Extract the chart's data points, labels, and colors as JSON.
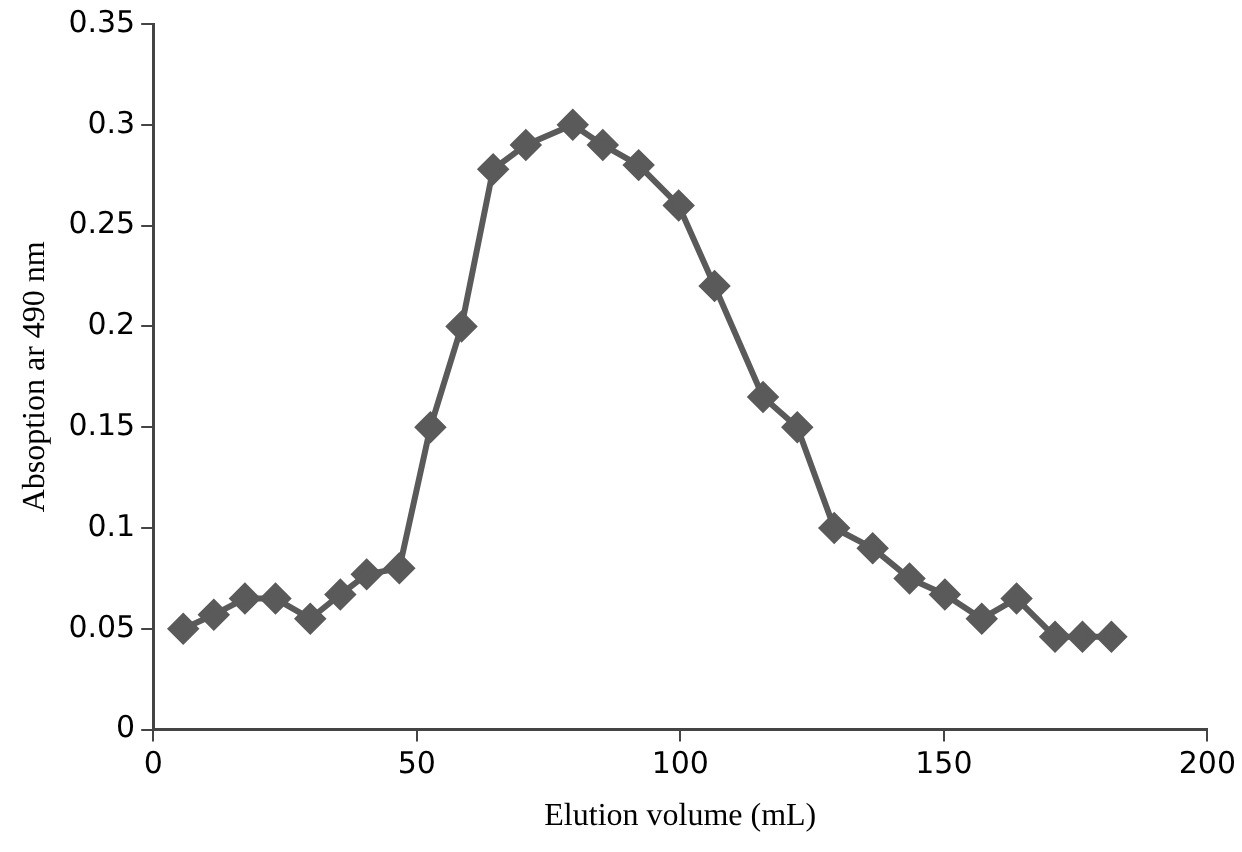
{
  "chart_data": {
    "type": "line",
    "xlabel": "Elution volume (mL)",
    "ylabel": "Absoption ar 490 nm",
    "x": [
      5.7,
      11.5,
      17.4,
      23.2,
      29.8,
      35.5,
      40.5,
      46.7,
      52.6,
      58.5,
      64.5,
      70.7,
      79.6,
      85.3,
      92.1,
      99.7,
      106.5,
      115.7,
      122.2,
      129.2,
      136.5,
      143.5,
      150.2,
      157.2,
      163.8,
      171.1,
      176.3,
      181.8
    ],
    "series": [
      {
        "color": "#5a5a5a",
        "values": [
          0.05,
          0.057,
          0.065,
          0.065,
          0.055,
          0.067,
          0.077,
          0.08,
          0.15,
          0.2,
          0.278,
          0.29,
          0.3,
          0.29,
          0.28,
          0.26,
          0.22,
          0.165,
          0.15,
          0.1,
          0.09,
          0.075,
          0.067,
          0.055,
          0.065,
          0.046,
          0.046,
          0.046
        ]
      }
    ],
    "xlim": [
      0,
      200
    ],
    "xticks": [
      0,
      50,
      100,
      150,
      200
    ],
    "ylim": [
      0,
      0.35
    ],
    "yticks": [
      0,
      0.05,
      0.1,
      0.15,
      0.2,
      0.25,
      0.3,
      0.35
    ],
    "grid": false,
    "legend": false,
    "marker": "diamond",
    "line_style": "solid"
  }
}
